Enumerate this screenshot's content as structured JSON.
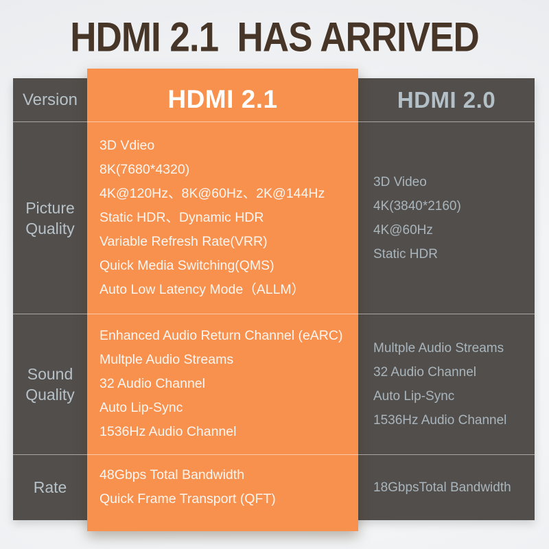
{
  "title": "HDMI 2.1  HAS ARRIVED",
  "colors": {
    "accent_orange": "#f8914e",
    "table_gray": "#524e4b",
    "title_brown": "#473628",
    "muted_label": "#b6c1c8",
    "hdmi21_header_text": "#ffffff",
    "hdmi21_body_text": "#fbf6f1",
    "hdmi20_body_text": "#a9b5bc"
  },
  "table": {
    "header": {
      "version_label": "Version",
      "hdmi21_title": "HDMI 2.1",
      "hdmi20_title": "HDMI 2.0"
    },
    "rows": [
      {
        "label": "Picture Quality",
        "hdmi21": [
          "3D Vdieo",
          "8K(7680*4320)",
          "4K@120Hz、8K@60Hz、2K@144Hz",
          "Static HDR、Dynamic HDR",
          "Variable Refresh Rate(VRR)",
          "Quick Media Switching(QMS)",
          "Auto Low Latency Mode（ALLM）"
        ],
        "hdmi20": [
          "3D Video",
          "4K(3840*2160)",
          "4K@60Hz",
          "Static HDR"
        ]
      },
      {
        "label": "Sound Quality",
        "hdmi21": [
          "Enhanced Audio Return Channel (eARC)",
          "Multple Audio Streams",
          "32 Audio Channel",
          "Auto Lip-Sync",
          "1536Hz Audio Channel"
        ],
        "hdmi20": [
          "Multple Audio Streams",
          "32 Audio Channel",
          "Auto Lip-Sync",
          "1536Hz Audio Channel"
        ]
      },
      {
        "label": "Rate",
        "hdmi21": [
          "48Gbps Total Bandwidth",
          "Quick Frame Transport (QFT)"
        ],
        "hdmi20": [
          "18GbpsTotal Bandwidth"
        ]
      }
    ]
  }
}
